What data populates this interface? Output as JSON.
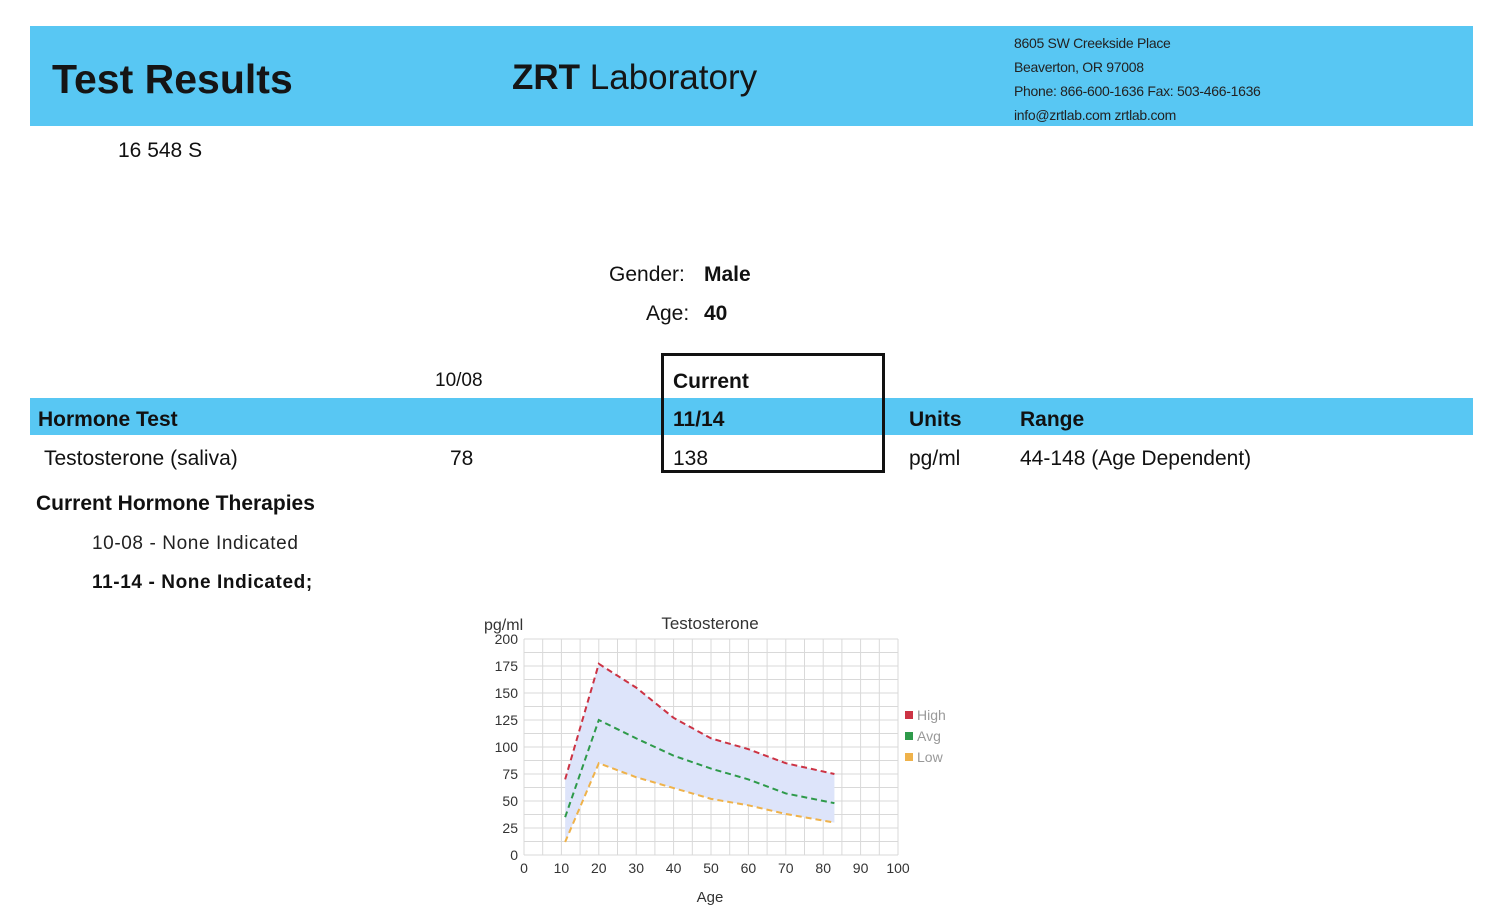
{
  "header": {
    "title": "Test Results",
    "lab_name_bold": "ZRT",
    "lab_name_rest": " Laboratory",
    "address_lines": [
      "8605 SW Creekside Place",
      "Beaverton, OR 97008",
      "Phone: 866-600-1636 Fax: 503-466-1636",
      "info@zrtlab.com zrtlab.com"
    ]
  },
  "patient": {
    "id": "16 548 S",
    "gender_label": "Gender:",
    "gender_value": "Male",
    "age_label": "Age:",
    "age_value": "40"
  },
  "results_table": {
    "prev_date": "10/08",
    "current_label": "Current",
    "headers": {
      "test": "Hormone Test",
      "current_date": "11/14",
      "units": "Units",
      "range": "Range"
    },
    "rows": [
      {
        "test": "Testosterone (saliva)",
        "prev": "78",
        "current": "138",
        "units": "pg/ml",
        "range": "44-148 (Age Dependent)"
      }
    ]
  },
  "therapies": {
    "heading": "Current Hormone Therapies",
    "items": [
      {
        "date": "10-08",
        "text": "- None Indicated"
      },
      {
        "date": "11-14",
        "text": "- None Indicated;"
      }
    ]
  },
  "chart_data": {
    "type": "line",
    "title": "Testosterone",
    "ylabel": "pg/ml",
    "xlabel": "Age",
    "xlim": [
      0,
      100
    ],
    "ylim": [
      0,
      200
    ],
    "x_ticks": [
      0,
      10,
      20,
      30,
      40,
      50,
      60,
      70,
      80,
      90,
      100
    ],
    "y_ticks": [
      0,
      25,
      50,
      75,
      100,
      125,
      150,
      175,
      200
    ],
    "grid": true,
    "legend_position": "right",
    "band_fill": "#dde4fa",
    "series": [
      {
        "name": "High",
        "color": "#cc3344",
        "x": [
          11,
          20,
          30,
          40,
          50,
          60,
          70,
          83
        ],
        "y": [
          70,
          177,
          155,
          127,
          108,
          98,
          85,
          75
        ]
      },
      {
        "name": "Avg",
        "color": "#2e9a4a",
        "x": [
          11,
          20,
          30,
          40,
          50,
          60,
          70,
          83
        ],
        "y": [
          35,
          125,
          108,
          92,
          80,
          70,
          57,
          48
        ]
      },
      {
        "name": "Low",
        "color": "#efb24a",
        "x": [
          11,
          20,
          30,
          40,
          50,
          60,
          70,
          83
        ],
        "y": [
          12,
          85,
          72,
          62,
          52,
          46,
          38,
          30
        ]
      }
    ]
  }
}
